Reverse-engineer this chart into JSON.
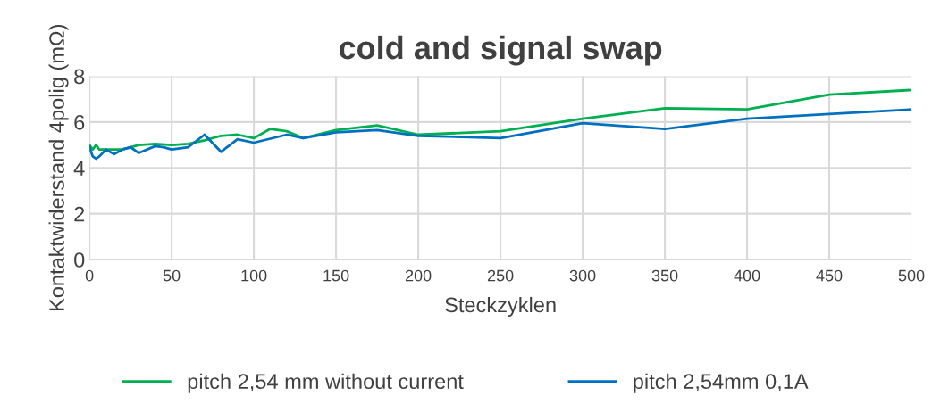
{
  "chart_data": {
    "type": "line",
    "title": "cold and signal swap",
    "xlabel": "Steckzyklen",
    "ylabel": "Kontaktwiderstand 4polig (mΩ)",
    "xlim": [
      0,
      500
    ],
    "xticks": [
      0,
      50,
      100,
      150,
      200,
      250,
      300,
      350,
      400,
      450,
      500
    ],
    "ylim": [
      0,
      8
    ],
    "yticks": [
      0,
      2,
      4,
      6,
      8
    ],
    "grid": true,
    "legend": "bottom",
    "marker": "none",
    "line_style": "solid",
    "series": [
      {
        "name": "pitch 2,54 mm without current",
        "color": "#00b050",
        "x": [
          0,
          2,
          4,
          6,
          20,
          30,
          40,
          50,
          60,
          70,
          80,
          90,
          100,
          110,
          120,
          130,
          150,
          175,
          200,
          250,
          300,
          350,
          400,
          450,
          500
        ],
        "values": [
          5.0,
          4.8,
          5.0,
          4.8,
          4.8,
          5.0,
          5.05,
          5.0,
          5.05,
          5.2,
          5.4,
          5.45,
          5.3,
          5.7,
          5.6,
          5.3,
          5.65,
          5.85,
          5.45,
          5.6,
          6.15,
          6.6,
          6.55,
          7.2,
          7.4
        ]
      },
      {
        "name": "pitch 2,54mm 0,1A",
        "color": "#0070c0",
        "x": [
          0,
          2,
          4,
          6,
          10,
          15,
          20,
          25,
          30,
          40,
          45,
          50,
          60,
          70,
          80,
          90,
          100,
          120,
          130,
          150,
          175,
          200,
          250,
          300,
          350,
          400,
          450,
          500
        ],
        "values": [
          4.9,
          4.5,
          4.4,
          4.5,
          4.8,
          4.6,
          4.8,
          4.9,
          4.65,
          4.95,
          4.9,
          4.8,
          4.9,
          5.45,
          4.7,
          5.25,
          5.1,
          5.45,
          5.3,
          5.55,
          5.65,
          5.4,
          5.3,
          5.95,
          5.7,
          6.15,
          6.35,
          6.55
        ]
      }
    ]
  }
}
